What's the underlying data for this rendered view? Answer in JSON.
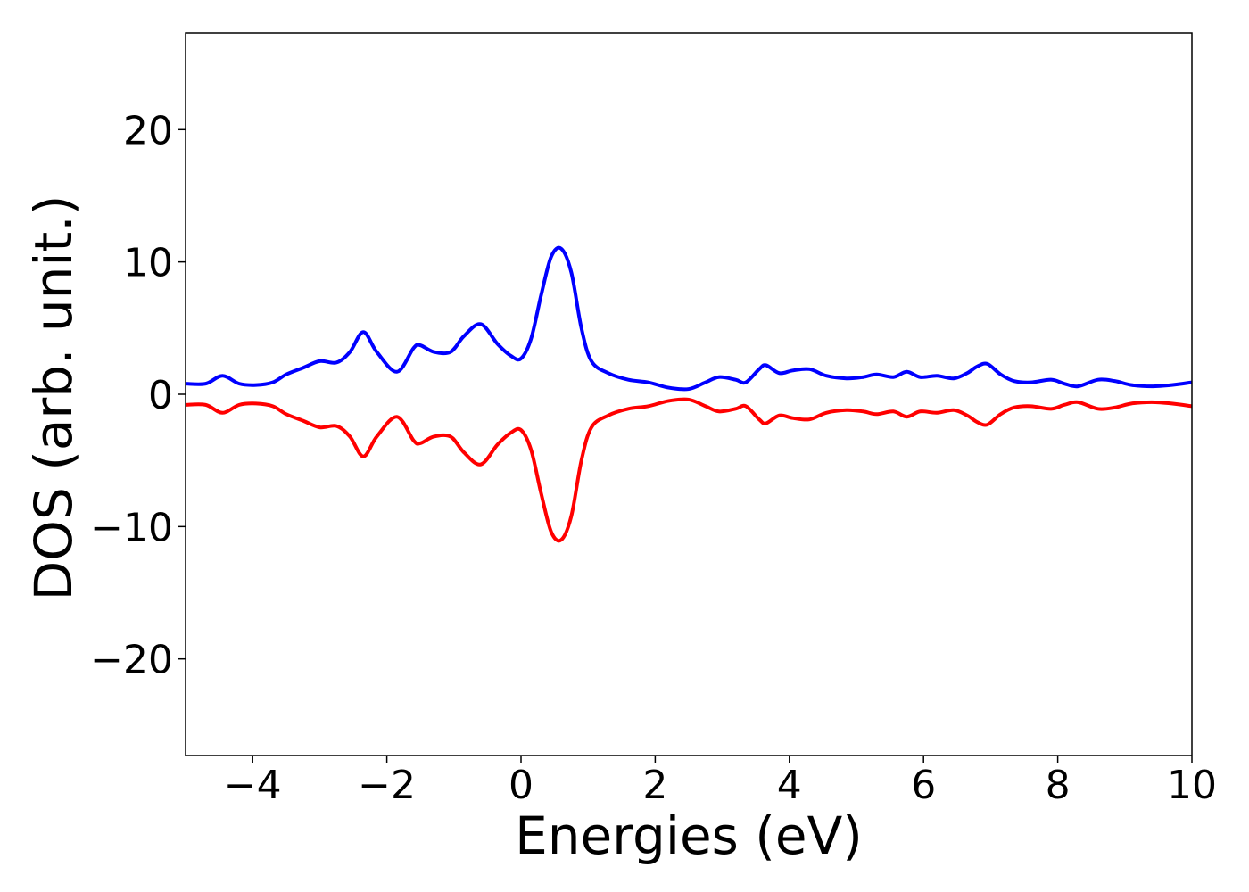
{
  "chart_data": {
    "type": "line",
    "title": "",
    "xlabel": "Energies (eV)",
    "ylabel": "DOS (arb. unit.)",
    "xlim": [
      -5,
      10
    ],
    "ylim": [
      -27.3,
      27.3
    ],
    "xticks": [
      -4,
      -2,
      0,
      2,
      4,
      6,
      8,
      10
    ],
    "xtick_labels": [
      "−4",
      "−2",
      "0",
      "2",
      "4",
      "6",
      "8",
      "10"
    ],
    "yticks": [
      -20,
      -10,
      0,
      10,
      20
    ],
    "ytick_labels": [
      "−20",
      "−10",
      "0",
      "10",
      "20"
    ],
    "grid": false,
    "legend": "none",
    "series": [
      {
        "color": "#0000ff",
        "x": [
          -5.0,
          -4.7,
          -4.45,
          -4.2,
          -3.95,
          -3.7,
          -3.5,
          -3.25,
          -3.0,
          -2.75,
          -2.55,
          -2.35,
          -2.15,
          -1.85,
          -1.6,
          -1.5,
          -1.3,
          -1.05,
          -0.85,
          -0.6,
          -0.35,
          -0.15,
          0.0,
          0.15,
          0.3,
          0.45,
          0.6,
          0.75,
          0.9,
          1.05,
          1.3,
          1.6,
          1.9,
          2.2,
          2.5,
          2.75,
          2.95,
          3.2,
          3.35,
          3.55,
          3.65,
          3.85,
          4.05,
          4.3,
          4.55,
          4.85,
          5.1,
          5.3,
          5.55,
          5.75,
          5.95,
          6.2,
          6.45,
          6.65,
          6.8,
          6.95,
          7.15,
          7.35,
          7.6,
          7.9,
          8.1,
          8.3,
          8.6,
          8.85,
          9.1,
          9.4,
          9.7,
          10.0
        ],
        "y": [
          0.8,
          0.8,
          1.4,
          0.8,
          0.7,
          0.9,
          1.5,
          2.0,
          2.5,
          2.4,
          3.2,
          4.7,
          3.2,
          1.7,
          3.5,
          3.7,
          3.2,
          3.2,
          4.4,
          5.3,
          3.8,
          2.9,
          2.7,
          4.2,
          7.5,
          10.4,
          11.0,
          9.2,
          5.0,
          2.5,
          1.6,
          1.1,
          0.9,
          0.5,
          0.4,
          0.9,
          1.3,
          1.1,
          0.9,
          1.9,
          2.2,
          1.6,
          1.8,
          1.9,
          1.4,
          1.2,
          1.3,
          1.5,
          1.3,
          1.7,
          1.3,
          1.4,
          1.2,
          1.6,
          2.1,
          2.3,
          1.5,
          1.0,
          0.9,
          1.1,
          0.8,
          0.6,
          1.1,
          1.0,
          0.7,
          0.6,
          0.7,
          0.9
        ]
      },
      {
        "color": "#ff0000",
        "x": [
          -5.0,
          -4.7,
          -4.45,
          -4.2,
          -3.95,
          -3.7,
          -3.5,
          -3.25,
          -3.0,
          -2.75,
          -2.55,
          -2.35,
          -2.15,
          -1.85,
          -1.6,
          -1.5,
          -1.3,
          -1.05,
          -0.85,
          -0.6,
          -0.35,
          -0.15,
          0.0,
          0.15,
          0.3,
          0.45,
          0.6,
          0.75,
          0.9,
          1.05,
          1.3,
          1.6,
          1.9,
          2.2,
          2.5,
          2.75,
          2.95,
          3.2,
          3.35,
          3.55,
          3.65,
          3.85,
          4.05,
          4.3,
          4.55,
          4.85,
          5.1,
          5.3,
          5.55,
          5.75,
          5.95,
          6.2,
          6.45,
          6.65,
          6.8,
          6.95,
          7.15,
          7.35,
          7.6,
          7.9,
          8.1,
          8.3,
          8.6,
          8.85,
          9.1,
          9.4,
          9.7,
          10.0
        ],
        "y": [
          -0.8,
          -0.8,
          -1.4,
          -0.8,
          -0.7,
          -0.9,
          -1.5,
          -2.0,
          -2.5,
          -2.4,
          -3.2,
          -4.7,
          -3.2,
          -1.7,
          -3.5,
          -3.7,
          -3.2,
          -3.2,
          -4.4,
          -5.3,
          -3.8,
          -2.9,
          -2.7,
          -4.2,
          -7.5,
          -10.4,
          -11.0,
          -9.2,
          -5.0,
          -2.5,
          -1.6,
          -1.1,
          -0.9,
          -0.5,
          -0.4,
          -0.9,
          -1.3,
          -1.1,
          -0.9,
          -1.9,
          -2.2,
          -1.6,
          -1.8,
          -1.9,
          -1.4,
          -1.2,
          -1.3,
          -1.5,
          -1.3,
          -1.7,
          -1.3,
          -1.4,
          -1.2,
          -1.6,
          -2.1,
          -2.3,
          -1.5,
          -1.0,
          -0.9,
          -1.1,
          -0.8,
          -0.6,
          -1.1,
          -1.0,
          -0.7,
          -0.6,
          -0.7,
          -0.9
        ]
      }
    ]
  }
}
